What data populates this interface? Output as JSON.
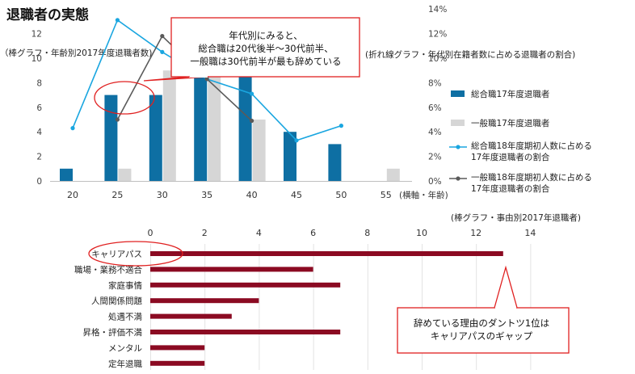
{
  "page": {
    "title": "退職者の実態",
    "left_note": "（棒グラフ・年齢別2017年度退職者数)",
    "right_note": "(折れ線グラフ・年代別在籍者数に占める退職者の割合)",
    "bottom_note": "(棒グラフ・事由別2017年退職者)",
    "callout_top": [
      "年代別にみると、",
      "総合職は20代後半〜30代前半、",
      "一般職は30代前半が最も辞めている"
    ],
    "callout_bottom": [
      "辞めている理由のダントツ1位は",
      "キャリアパスのギャップ"
    ],
    "colors": {
      "main_bar": "#0e6fa3",
      "general_bar": "#d6d6d6",
      "line_main": "#1aa6e0",
      "line_general": "#5a5a5a",
      "reason_bar": "#8b0a22",
      "callout": "#e02020"
    }
  },
  "chart_data": [
    {
      "type": "bar",
      "x_axis_suffix": "(横軸・年齢)",
      "categories": [
        "20",
        "25",
        "30",
        "35",
        "40",
        "45",
        "50",
        "55"
      ],
      "ylim": [
        0,
        14
      ],
      "y_ticks": [
        "0",
        "2",
        "4",
        "6",
        "8",
        "10",
        "12"
      ],
      "y2lim": [
        0,
        0.14
      ],
      "y2_ticks": [
        "0%",
        "2%",
        "4%",
        "6%",
        "8%",
        "10%",
        "12%",
        "14%"
      ],
      "series": [
        {
          "name": "総合職17年度退職者",
          "kind": "bar",
          "values": [
            1,
            7,
            7,
            10,
            11,
            4,
            3,
            0
          ]
        },
        {
          "name": "一般職17年度退職者",
          "kind": "bar",
          "values": [
            0,
            1,
            9,
            9,
            5,
            0,
            0,
            1
          ]
        },
        {
          "name": "総合職18年度期初人数に占める17年度退職者の割合",
          "kind": "line",
          "axis": "right",
          "values": [
            0.043,
            0.131,
            0.105,
            0.083,
            0.071,
            0.033,
            0.045,
            null
          ]
        },
        {
          "name": "一般職18年度期初人数に占める17年度退職者の割合",
          "kind": "line",
          "axis": "right",
          "values": [
            null,
            0.05,
            0.118,
            0.083,
            0.049,
            null,
            null,
            null
          ]
        }
      ]
    },
    {
      "type": "bar",
      "orientation": "horizontal",
      "categories": [
        "キャリアパス",
        "職場・業務不適合",
        "家庭事情",
        "人間関係問題",
        "処遇不満",
        "昇格・評価不満",
        "メンタル",
        "定年退職"
      ],
      "values": [
        13,
        6,
        7,
        4,
        3,
        7,
        2,
        2
      ],
      "xlim": [
        0,
        14
      ],
      "x_ticks": [
        "0",
        "2",
        "4",
        "6",
        "8",
        "10",
        "12",
        "14"
      ]
    }
  ]
}
